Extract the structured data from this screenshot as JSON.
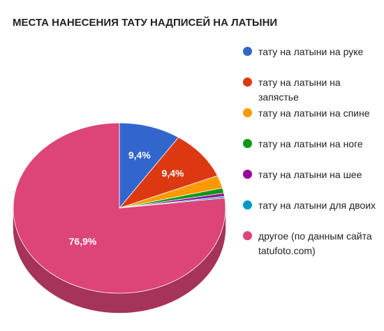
{
  "chart_data": {
    "type": "pie",
    "title": "МЕСТА НАНЕСЕНИЯ ТАТУ НАДПИСЕЙ НА ЛАТЫНИ",
    "three_d": true,
    "legend_position": "right",
    "slices": [
      {
        "name": "тату на латыни на руке",
        "value": 9.4,
        "label": "9,4%",
        "color": "#3366cc",
        "side": "#264d99"
      },
      {
        "name": "тату на латыни на запястье",
        "value": 9.4,
        "label": "9,4%",
        "color": "#dc3912",
        "side": "#a52b0e"
      },
      {
        "name": "тату на латыни на спине",
        "value": 2.4,
        "label": "",
        "color": "#ff9900",
        "side": "#bf7300"
      },
      {
        "name": "тату на латыни на ноге",
        "value": 1.0,
        "label": "",
        "color": "#109618",
        "side": "#0c7112"
      },
      {
        "name": "тату на латыни на шее",
        "value": 0.6,
        "label": "",
        "color": "#990099",
        "side": "#730073"
      },
      {
        "name": "тату на латыни для двоих",
        "value": 0.3,
        "label": "",
        "color": "#0099c6",
        "side": "#007395"
      },
      {
        "name": "другое (по данным сайта tatufoto.com)",
        "value": 76.9,
        "label": "76,9%",
        "color": "#dd4477",
        "side": "#a63359"
      }
    ]
  }
}
